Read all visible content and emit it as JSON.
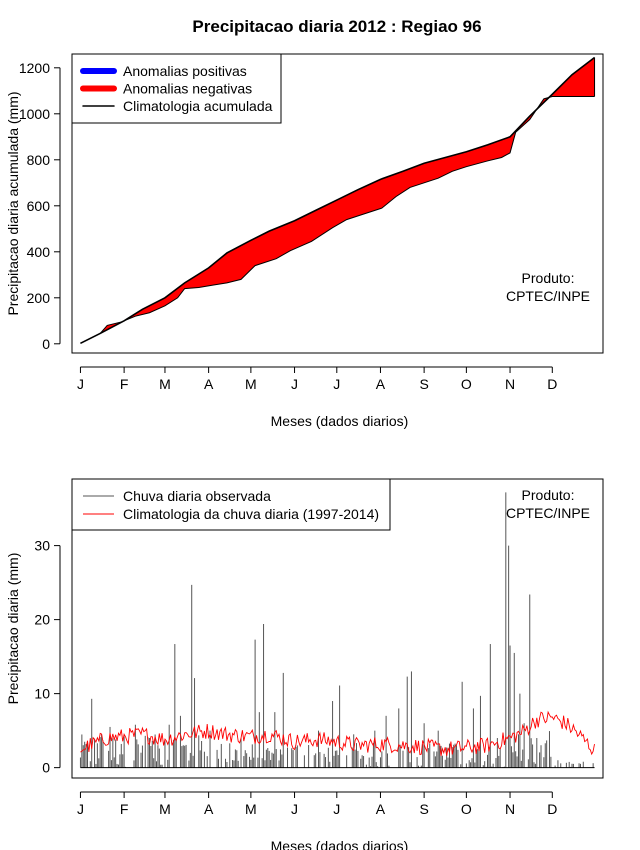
{
  "title": "Precipitacao diaria 2012 : Regiao 96",
  "chart_data": [
    {
      "type": "area",
      "ylabel": "Precipitacao diaria acumulada (mm)",
      "xlabel": "Meses (dados diarios)",
      "months": [
        "J",
        "F",
        "M",
        "A",
        "M",
        "J",
        "J",
        "A",
        "S",
        "O",
        "N",
        "D"
      ],
      "month_start_days": [
        1,
        32,
        61,
        92,
        122,
        153,
        183,
        214,
        245,
        275,
        306,
        336
      ],
      "ylim": [
        -40,
        1260
      ],
      "yticks": [
        0,
        200,
        400,
        600,
        800,
        1000,
        1200
      ],
      "xlim": [
        -5,
        372
      ],
      "annotation": [
        "Produto:",
        "CPTEC/INPE"
      ],
      "legend": [
        {
          "label": "Anomalias positivas",
          "color": "#0000ff"
        },
        {
          "label": "Anomalias negativas",
          "color": "#ff0000"
        },
        {
          "label": "Climatologia acumulada",
          "color": "#000000"
        }
      ],
      "climatology_cumulative": {
        "days": [
          1,
          15,
          32,
          45,
          61,
          75,
          92,
          105,
          122,
          135,
          153,
          168,
          183,
          198,
          214,
          230,
          245,
          260,
          275,
          290,
          306,
          320,
          336,
          350,
          366
        ],
        "values": [
          2,
          45,
          100,
          150,
          200,
          265,
          330,
          395,
          450,
          490,
          535,
          580,
          625,
          670,
          715,
          750,
          785,
          810,
          835,
          865,
          900,
          990,
          1085,
          1170,
          1245
        ]
      },
      "observed_cumulative": {
        "days": [
          1,
          15,
          20,
          30,
          40,
          50,
          61,
          70,
          75,
          85,
          95,
          105,
          115,
          125,
          140,
          150,
          165,
          180,
          190,
          200,
          215,
          225,
          235,
          245,
          255,
          265,
          275,
          290,
          300,
          306,
          310,
          320,
          330,
          336,
          366
        ],
        "values": [
          2,
          45,
          80,
          95,
          120,
          135,
          165,
          200,
          240,
          245,
          255,
          265,
          280,
          340,
          370,
          405,
          445,
          505,
          540,
          560,
          590,
          640,
          680,
          700,
          720,
          750,
          770,
          795,
          810,
          830,
          920,
          975,
          1065,
          1075,
          1075
        ]
      }
    },
    {
      "type": "bar",
      "ylabel": "Precipitacao diaria (mm)",
      "xlabel": "Meses (dados diarios)",
      "months": [
        "J",
        "F",
        "M",
        "A",
        "M",
        "J",
        "J",
        "A",
        "S",
        "O",
        "N",
        "D"
      ],
      "month_start_days": [
        1,
        32,
        61,
        92,
        122,
        153,
        183,
        214,
        245,
        275,
        306,
        336
      ],
      "ylim": [
        -1.4,
        39
      ],
      "yticks": [
        0,
        10,
        20,
        30
      ],
      "xlim": [
        -5,
        372
      ],
      "annotation": [
        "Produto:",
        "CPTEC/INPE"
      ],
      "legend": [
        {
          "label": "Chuva diaria observada",
          "color": "#555555"
        },
        {
          "label": "Climatologia da chuva diaria (1997-2014)",
          "color": "#ff0000"
        }
      ],
      "observed_peaks": [
        {
          "day": 4,
          "value": 3.5
        },
        {
          "day": 9,
          "value": 9.3
        },
        {
          "day": 16,
          "value": 4.5
        },
        {
          "day": 22,
          "value": 5.5
        },
        {
          "day": 30,
          "value": 3.2
        },
        {
          "day": 40,
          "value": 5.8
        },
        {
          "day": 50,
          "value": 4.0
        },
        {
          "day": 64,
          "value": 5.8
        },
        {
          "day": 68,
          "value": 16.7
        },
        {
          "day": 72,
          "value": 7.0
        },
        {
          "day": 80,
          "value": 24.7
        },
        {
          "day": 82,
          "value": 12.1
        },
        {
          "day": 93,
          "value": 5.0
        },
        {
          "day": 101,
          "value": 3.2
        },
        {
          "day": 115,
          "value": 4.0
        },
        {
          "day": 125,
          "value": 17.3
        },
        {
          "day": 128,
          "value": 7.5
        },
        {
          "day": 131,
          "value": 19.4
        },
        {
          "day": 139,
          "value": 7.5
        },
        {
          "day": 145,
          "value": 12.8
        },
        {
          "day": 155,
          "value": 3.0
        },
        {
          "day": 170,
          "value": 5.0
        },
        {
          "day": 180,
          "value": 9.0
        },
        {
          "day": 185,
          "value": 11.1
        },
        {
          "day": 195,
          "value": 4.5
        },
        {
          "day": 210,
          "value": 5.0
        },
        {
          "day": 218,
          "value": 7.0
        },
        {
          "day": 227,
          "value": 8.0
        },
        {
          "day": 233,
          "value": 12.3
        },
        {
          "day": 236,
          "value": 13.0
        },
        {
          "day": 245,
          "value": 6.0
        },
        {
          "day": 255,
          "value": 5.0
        },
        {
          "day": 268,
          "value": 3.0
        },
        {
          "day": 272,
          "value": 11.6
        },
        {
          "day": 280,
          "value": 8.0
        },
        {
          "day": 285,
          "value": 9.7
        },
        {
          "day": 292,
          "value": 16.7
        },
        {
          "day": 297,
          "value": 4.0
        },
        {
          "day": 303,
          "value": 37.2
        },
        {
          "day": 305,
          "value": 30.0
        },
        {
          "day": 306,
          "value": 16.5
        },
        {
          "day": 309,
          "value": 15.5
        },
        {
          "day": 313,
          "value": 10.0
        },
        {
          "day": 316,
          "value": 6.0
        },
        {
          "day": 320,
          "value": 23.4
        },
        {
          "day": 325,
          "value": 4.0
        },
        {
          "day": 340,
          "value": 1.0
        },
        {
          "day": 358,
          "value": 0.8
        },
        {
          "day": 365,
          "value": 0.6
        }
      ],
      "climatology_daily": {
        "days": [
          1,
          10,
          20,
          32,
          45,
          61,
          75,
          92,
          105,
          122,
          135,
          153,
          170,
          183,
          198,
          214,
          230,
          245,
          260,
          275,
          290,
          306,
          315,
          325,
          336,
          345,
          352,
          366
        ],
        "values": [
          2.5,
          3.2,
          4.0,
          4.2,
          4.5,
          3.8,
          4.5,
          5.0,
          4.5,
          4.2,
          4.5,
          3.5,
          3.8,
          3.5,
          3.0,
          3.2,
          3.0,
          2.8,
          2.5,
          2.7,
          3.0,
          4.0,
          4.8,
          6.5,
          6.8,
          6.0,
          5.0,
          2.3
        ]
      }
    }
  ]
}
